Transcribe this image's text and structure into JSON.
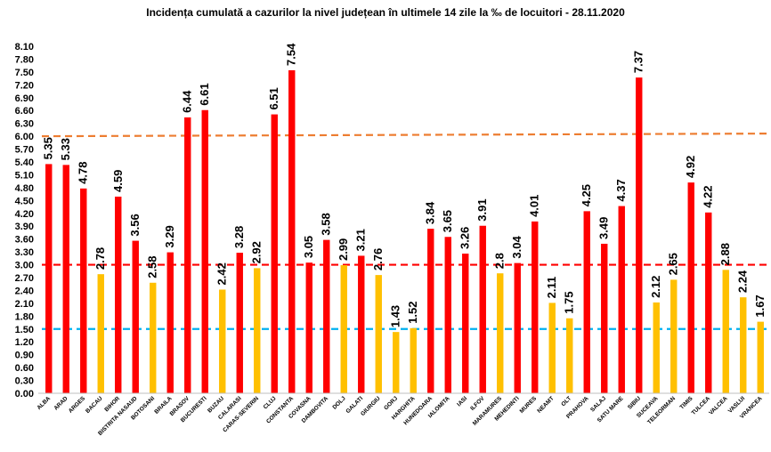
{
  "chart_data": {
    "type": "bar",
    "title": "Incidența cumulată a cazurilor la nivel județean în ultimele 14 zile la ‰ de locuitori - 28.11.2020",
    "xlabel": "",
    "ylabel": "",
    "ylim": [
      0,
      8.1
    ],
    "yticks": [
      0.0,
      0.3,
      0.6,
      0.9,
      1.2,
      1.5,
      1.8,
      2.1,
      2.4,
      2.7,
      3.0,
      3.3,
      3.6,
      3.9,
      4.2,
      4.5,
      4.8,
      5.1,
      5.4,
      5.7,
      6.0,
      6.3,
      6.6,
      6.9,
      7.2,
      7.5,
      7.8,
      8.1
    ],
    "ytick_labels": [
      "0.00",
      "0.30",
      "0.60",
      "0.90",
      "1.20",
      "1.50",
      "1.80",
      "2.10",
      "2.40",
      "2.70",
      "3.00",
      "3.30",
      "3.60",
      "3.90",
      "4.20",
      "4.50",
      "4.80",
      "5.10",
      "5.40",
      "5.70",
      "6.00",
      "6.30",
      "6.60",
      "6.90",
      "7.20",
      "7.50",
      "7.80",
      "8.10"
    ],
    "grid": false,
    "categories": [
      "ALBA",
      "ARAD",
      "ARGES",
      "BACAU",
      "BIHOR",
      "BISTRITA NASAUD",
      "BOTOSANI",
      "BRAILA",
      "BRASOV",
      "BUCURESTI",
      "BUZAU",
      "CALARASI",
      "CARAS-SEVERIN",
      "CLUJ",
      "CONSTANTA",
      "COVASNA",
      "DAMBOVITA",
      "DOLJ",
      "GALATI",
      "GIURGIU",
      "GORJ",
      "HARGHITA",
      "HUNEDOARA",
      "IALOMITA",
      "IASI",
      "ILFOV",
      "MARAMURES",
      "MEHEDINTI",
      "MURES",
      "NEAMT",
      "OLT",
      "PRAHOVA",
      "SALAJ",
      "SATU MARE",
      "SIBIU",
      "SUCEAVA",
      "TELEORMAN",
      "TIMIS",
      "TULCEA",
      "VALCEA",
      "VASLUI",
      "VRANCEA"
    ],
    "values": [
      5.35,
      5.33,
      4.78,
      2.78,
      4.59,
      3.56,
      2.58,
      3.29,
      6.44,
      6.61,
      2.42,
      3.28,
      2.92,
      6.51,
      7.54,
      3.05,
      3.58,
      2.99,
      3.21,
      2.76,
      1.43,
      1.52,
      3.84,
      3.65,
      3.26,
      3.91,
      2.8,
      3.04,
      4.01,
      2.11,
      1.75,
      4.25,
      3.49,
      4.37,
      7.37,
      2.12,
      2.65,
      4.92,
      4.22,
      2.88,
      2.24,
      1.67
    ],
    "value_labels": [
      "5.35",
      "5.33",
      "4.78",
      "2.78",
      "4.59",
      "3.56",
      "2.58",
      "3.29",
      "6.44",
      "6.61",
      "2.42",
      "3.28",
      "2.92",
      "6.51",
      "7.54",
      "3.05",
      "3.58",
      "2.99",
      "3.21",
      "2.76",
      "1.43",
      "1.52",
      "3.84",
      "3.65",
      "3.26",
      "3.91",
      "2.8",
      "3.04",
      "4.01",
      "2.11",
      "1.75",
      "4.25",
      "3.49",
      "4.37",
      "7.37",
      "2.12",
      "2.65",
      "4.92",
      "4.22",
      "2.88",
      "2.24",
      "1.67"
    ],
    "bar_colors": [
      "red",
      "red",
      "red",
      "yellow",
      "red",
      "red",
      "yellow",
      "red",
      "red",
      "red",
      "yellow",
      "red",
      "yellow",
      "red",
      "red",
      "red",
      "red",
      "yellow",
      "red",
      "yellow",
      "yellow",
      "yellow",
      "red",
      "red",
      "red",
      "red",
      "yellow",
      "red",
      "red",
      "yellow",
      "yellow",
      "red",
      "red",
      "red",
      "red",
      "yellow",
      "yellow",
      "red",
      "red",
      "yellow",
      "yellow",
      "yellow"
    ],
    "palette": {
      "red": "#ff0000",
      "yellow": "#ffc000"
    },
    "reference_lines": [
      {
        "value": 6.0,
        "color": "#ed7d31",
        "style": "dashed"
      },
      {
        "value": 3.0,
        "color": "#ff0000",
        "style": "dashed"
      },
      {
        "value": 1.5,
        "color": "#00b0f0",
        "style": "dashed"
      }
    ]
  }
}
